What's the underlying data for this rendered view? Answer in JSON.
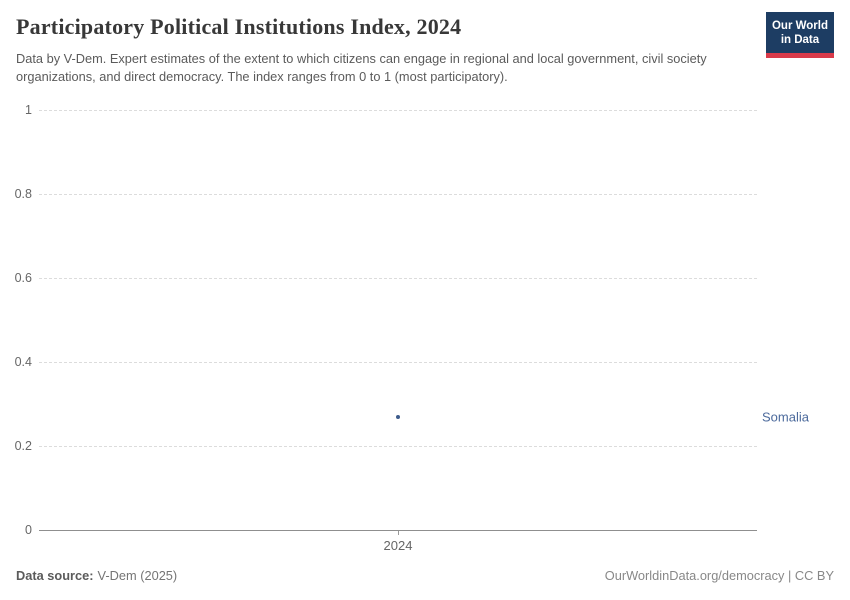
{
  "header": {
    "title": "Participatory Political Institutions Index, 2024",
    "subtitle": "Data by V-Dem. Expert estimates of the extent to which citizens can engage in regional and local government, civil society organizations, and direct democracy. The index ranges from 0 to 1 (most participatory).",
    "logo": {
      "line1": "Our World",
      "line2": "in Data",
      "bg_color": "#1d3d63",
      "accent_color": "#d93a4a"
    }
  },
  "chart_data": {
    "type": "scatter",
    "title": "Participatory Political Institutions Index, 2024",
    "x": [
      2024
    ],
    "series": [
      {
        "name": "Somalia",
        "values": [
          0.27
        ],
        "color": "#3e5c8c",
        "label_color": "#4c6a9c"
      }
    ],
    "xlabel": "",
    "ylabel": "",
    "ylim": [
      0,
      1
    ],
    "yticks": [
      0,
      0.2,
      0.4,
      0.6,
      0.8,
      1
    ],
    "xticks": [
      "2024"
    ],
    "grid": "horizontal-dashed",
    "legend_position": "entity-label-right"
  },
  "footer": {
    "source_label": "Data source:",
    "source_value": "V-Dem (2025)",
    "credit": "OurWorldinData.org/democracy | CC BY"
  }
}
